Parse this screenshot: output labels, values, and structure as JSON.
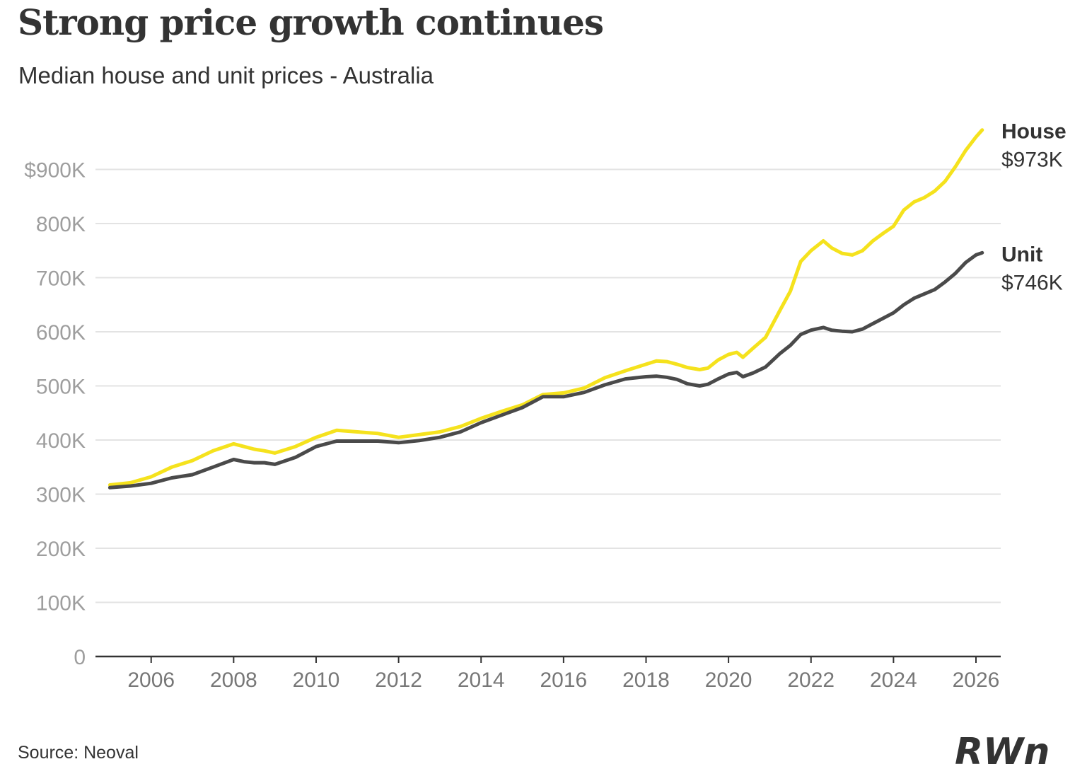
{
  "header": {
    "title": "Strong price growth continues",
    "subtitle": "Median house and unit prices - Australia"
  },
  "footer": {
    "source": "Source: Neoval",
    "logo_text": "RWn"
  },
  "colors": {
    "house": "#f5e21d",
    "unit": "#4a4a4a",
    "grid": "#e3e3e3",
    "axis": "#333333"
  },
  "chart_data": {
    "type": "line",
    "title": "Strong price growth continues",
    "subtitle": "Median house and unit prices - Australia",
    "xlabel": "",
    "ylabel": "",
    "xlim": [
      2004.65,
      2026.6
    ],
    "ylim": [
      0,
      1000000
    ],
    "grid": true,
    "x_ticks": [
      2006,
      2008,
      2010,
      2012,
      2014,
      2016,
      2018,
      2020,
      2022,
      2024,
      2026
    ],
    "y_ticks": [
      {
        "value": 0,
        "label": "0"
      },
      {
        "value": 100000,
        "label": "100K"
      },
      {
        "value": 200000,
        "label": "200K"
      },
      {
        "value": 300000,
        "label": "300K"
      },
      {
        "value": 400000,
        "label": "400K"
      },
      {
        "value": 500000,
        "label": "500K"
      },
      {
        "value": 600000,
        "label": "600K"
      },
      {
        "value": 700000,
        "label": "700K"
      },
      {
        "value": 800000,
        "label": "800K"
      },
      {
        "value": 900000,
        "label": "$900K"
      }
    ],
    "series": [
      {
        "name": "House",
        "end_label": "$973K",
        "x": [
          2005.0,
          2005.5,
          2006.0,
          2006.5,
          2007.0,
          2007.5,
          2008.0,
          2008.25,
          2008.5,
          2008.75,
          2009.0,
          2009.5,
          2010.0,
          2010.5,
          2011.0,
          2011.5,
          2012.0,
          2012.5,
          2013.0,
          2013.5,
          2014.0,
          2014.5,
          2015.0,
          2015.5,
          2016.0,
          2016.5,
          2017.0,
          2017.5,
          2018.0,
          2018.25,
          2018.5,
          2018.75,
          2019.0,
          2019.3,
          2019.5,
          2019.75,
          2020.0,
          2020.2,
          2020.35,
          2020.6,
          2020.9,
          2021.25,
          2021.5,
          2021.75,
          2022.0,
          2022.3,
          2022.5,
          2022.75,
          2023.0,
          2023.25,
          2023.5,
          2023.75,
          2024.0,
          2024.25,
          2024.5,
          2024.75,
          2025.0,
          2025.25,
          2025.5,
          2025.75,
          2026.0,
          2026.15
        ],
        "values": [
          317000,
          321000,
          332000,
          350000,
          362000,
          380000,
          393000,
          388000,
          383000,
          380000,
          376000,
          388000,
          405000,
          418000,
          415000,
          412000,
          405000,
          410000,
          415000,
          425000,
          440000,
          453000,
          465000,
          484000,
          487000,
          496000,
          515000,
          528000,
          540000,
          546000,
          545000,
          540000,
          534000,
          530000,
          533000,
          548000,
          558000,
          562000,
          553000,
          570000,
          590000,
          640000,
          675000,
          730000,
          750000,
          768000,
          755000,
          745000,
          742000,
          750000,
          768000,
          782000,
          795000,
          825000,
          840000,
          848000,
          860000,
          878000,
          905000,
          935000,
          960000,
          973000
        ]
      },
      {
        "name": "Unit",
        "end_label": "$746K",
        "x": [
          2005.0,
          2005.5,
          2006.0,
          2006.5,
          2007.0,
          2007.5,
          2008.0,
          2008.25,
          2008.5,
          2008.75,
          2009.0,
          2009.5,
          2010.0,
          2010.5,
          2011.0,
          2011.5,
          2012.0,
          2012.5,
          2013.0,
          2013.5,
          2014.0,
          2014.5,
          2015.0,
          2015.5,
          2016.0,
          2016.5,
          2017.0,
          2017.5,
          2018.0,
          2018.25,
          2018.5,
          2018.75,
          2019.0,
          2019.3,
          2019.5,
          2019.75,
          2020.0,
          2020.2,
          2020.35,
          2020.6,
          2020.9,
          2021.25,
          2021.5,
          2021.75,
          2022.0,
          2022.3,
          2022.5,
          2022.75,
          2023.0,
          2023.25,
          2023.5,
          2023.75,
          2024.0,
          2024.25,
          2024.5,
          2024.75,
          2025.0,
          2025.25,
          2025.5,
          2025.75,
          2026.0,
          2026.15
        ],
        "values": [
          312000,
          315000,
          320000,
          330000,
          336000,
          350000,
          364000,
          360000,
          358000,
          358000,
          355000,
          368000,
          388000,
          398000,
          398000,
          398000,
          395000,
          399000,
          405000,
          415000,
          432000,
          446000,
          460000,
          480000,
          480000,
          488000,
          502000,
          513000,
          517000,
          518000,
          516000,
          512000,
          504000,
          500000,
          503000,
          513000,
          522000,
          525000,
          517000,
          524000,
          535000,
          560000,
          575000,
          595000,
          603000,
          608000,
          603000,
          601000,
          600000,
          605000,
          615000,
          625000,
          635000,
          650000,
          662000,
          670000,
          678000,
          692000,
          708000,
          728000,
          742000,
          746000
        ]
      }
    ]
  }
}
